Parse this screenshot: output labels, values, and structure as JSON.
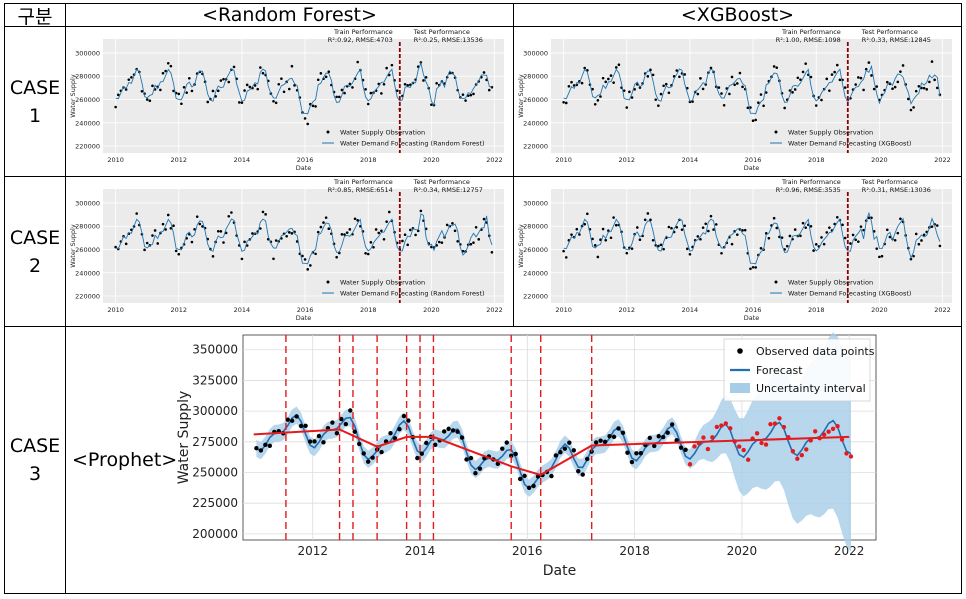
{
  "table": {
    "corner": "구분",
    "col_rf": "<Random Forest>",
    "col_xgb": "<XGBoost>",
    "cases": [
      {
        "label_a": "CASE",
        "label_b": "1"
      },
      {
        "label_a": "CASE",
        "label_b": "2"
      },
      {
        "label_a": "CASE",
        "label_b": "3"
      }
    ],
    "prophet_label": "<Prophet>"
  },
  "colors": {
    "observation": "#000000",
    "forecast_small": "#1f77b4",
    "divider": "#8b0000",
    "trend": "#e41a1c",
    "band": "#a6cde8",
    "red_points": "#e41a1c",
    "plot_bg": "#ebebeb"
  },
  "chart_data": [
    {
      "type": "line",
      "id": "rf_case1",
      "train_title": "Train Performance",
      "train_metric": "R²:0.92, RMSE:4703",
      "test_title": "Test Performance",
      "test_metric": "R²:0.25, RMSE:13536",
      "xlabel": "Date",
      "ylabel": "Water Supply",
      "xlim": [
        2009.6,
        2022.3
      ],
      "ylim": [
        214000,
        312000
      ],
      "x_ticks": [
        "2010",
        "2012",
        "2014",
        "2016",
        "2018",
        "2020",
        "2022"
      ],
      "y_ticks": [
        "220000",
        "240000",
        "260000",
        "280000",
        "300000"
      ],
      "split_year": 2019,
      "legend": [
        "Water Supply Observation",
        "Water Demand Forecasting (Random Forest)"
      ],
      "legend_loc": "lower-right"
    },
    {
      "type": "line",
      "id": "xgb_case1",
      "train_title": "Train Performance",
      "train_metric": "R²:1.00, RMSE:1098",
      "test_title": "Test Performance",
      "test_metric": "R²:0.33, RMSE:12845",
      "xlabel": "Date",
      "ylabel": "Water Supply",
      "xlim": [
        2009.6,
        2022.3
      ],
      "ylim": [
        214000,
        312000
      ],
      "x_ticks": [
        "2010",
        "2012",
        "2014",
        "2016",
        "2018",
        "2020",
        "2022"
      ],
      "y_ticks": [
        "220000",
        "240000",
        "260000",
        "280000",
        "300000"
      ],
      "split_year": 2019,
      "legend": [
        "Water Supply Observation",
        "Water Demand Forecasting (XGBoost)"
      ],
      "legend_loc": "lower-right"
    },
    {
      "type": "line",
      "id": "rf_case2",
      "train_title": "Train Performance",
      "train_metric": "R²:0.85, RMSE:6514",
      "test_title": "Test Performance",
      "test_metric": "R²:0.34, RMSE:12757",
      "xlabel": "Date",
      "ylabel": "Water Supply",
      "xlim": [
        2009.6,
        2022.3
      ],
      "ylim": [
        214000,
        312000
      ],
      "x_ticks": [
        "2010",
        "2012",
        "2014",
        "2016",
        "2018",
        "2020",
        "2022"
      ],
      "y_ticks": [
        "220000",
        "240000",
        "260000",
        "280000",
        "300000"
      ],
      "split_year": 2019,
      "legend": [
        "Water Supply Observation",
        "Water Demand Forecasting (Random Forest)"
      ],
      "legend_loc": "lower-right"
    },
    {
      "type": "line",
      "id": "xgb_case2",
      "train_title": "Train Performance",
      "train_metric": "R²:0.96, RMSE:3535",
      "test_title": "Test Performance",
      "test_metric": "R²:0.31, RMSE:13036",
      "xlabel": "Date",
      "ylabel": "Water Supply",
      "xlim": [
        2009.6,
        2022.3
      ],
      "ylim": [
        214000,
        312000
      ],
      "x_ticks": [
        "2010",
        "2012",
        "2014",
        "2016",
        "2018",
        "2020",
        "2022"
      ],
      "y_ticks": [
        "220000",
        "240000",
        "260000",
        "280000",
        "300000"
      ],
      "split_year": 2019,
      "legend": [
        "Water Supply Observation",
        "Water Demand Forecasting (XGBoost)"
      ],
      "legend_loc": "lower-right"
    },
    {
      "type": "line",
      "id": "prophet_case3",
      "xlabel": "Date",
      "ylabel": "Water Supply",
      "xlim": [
        2010.7,
        2022.5
      ],
      "ylim": [
        195000,
        362000
      ],
      "x_ticks": [
        "2012",
        "2014",
        "2016",
        "2018",
        "2020",
        "2022"
      ],
      "y_ticks": [
        "200000",
        "225000",
        "250000",
        "275000",
        "300000",
        "325000",
        "350000"
      ],
      "changepoints": [
        2011.5,
        2012.5,
        2012.75,
        2013.2,
        2013.75,
        2014.0,
        2014.25,
        2015.7,
        2016.25,
        2017.2
      ],
      "trend": [
        [
          2010.9,
          281000
        ],
        [
          2012.5,
          285000
        ],
        [
          2013.2,
          271000
        ],
        [
          2013.75,
          279000
        ],
        [
          2014.25,
          279000
        ],
        [
          2015.7,
          255000
        ],
        [
          2016.25,
          248000
        ],
        [
          2017.2,
          272000
        ],
        [
          2022.0,
          279000
        ]
      ],
      "test_start": 2019,
      "legend": [
        "Observed data points",
        "Forecast",
        "Uncertainty interval"
      ],
      "legend_loc": "top-right"
    }
  ]
}
